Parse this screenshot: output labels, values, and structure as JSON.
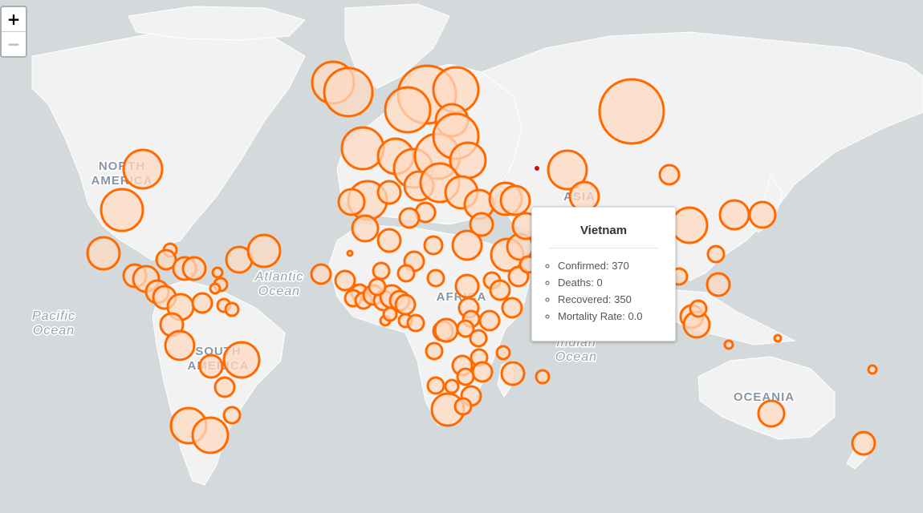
{
  "map": {
    "region_labels": [
      {
        "id": "north-america",
        "lines": [
          "NORTH",
          "AMERICA"
        ]
      },
      {
        "id": "south-america",
        "lines": [
          "SOUTH",
          "AMERICA"
        ]
      },
      {
        "id": "asia",
        "lines": [
          "ASIA"
        ]
      },
      {
        "id": "africa",
        "lines": [
          "AFRICA"
        ]
      },
      {
        "id": "oceania",
        "lines": [
          "OCEANIA"
        ]
      }
    ],
    "ocean_labels": [
      {
        "id": "atlantic-ocean",
        "lines": [
          "Atlantic",
          "Ocean"
        ]
      },
      {
        "id": "pacific-ocean",
        "lines": [
          "Pacific",
          "Ocean"
        ]
      },
      {
        "id": "indian-ocean",
        "lines": [
          "Indian",
          "Ocean"
        ]
      }
    ],
    "colors": {
      "water": "#d4dadc",
      "land": "#f2f2f2",
      "marker_stroke": "#ff6a00",
      "marker_fill": "#ffd9c2",
      "highlight_dot": "#cc1111"
    }
  },
  "zoom": {
    "in_label": "+",
    "out_label": "−"
  },
  "tooltip": {
    "country": "Vietnam",
    "items": [
      {
        "label": "Confirmed",
        "value": "370"
      },
      {
        "label": "Deaths",
        "value": "0"
      },
      {
        "label": "Recovered",
        "value": "350"
      },
      {
        "label": "Mortality Rate",
        "value": "0.0"
      }
    ]
  }
}
